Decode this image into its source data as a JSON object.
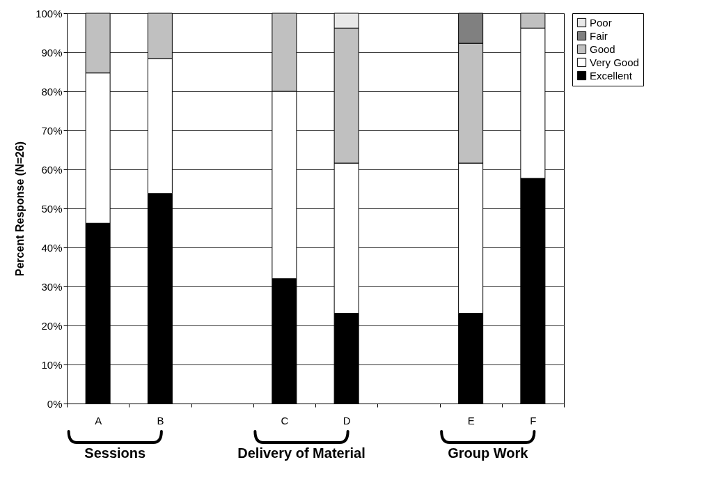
{
  "chart_data": {
    "type": "bar",
    "stacked": true,
    "ylabel": "Percent Response (N=26)",
    "categories": [
      "A",
      "B",
      null,
      "C",
      "D",
      null,
      "E",
      "F"
    ],
    "series": [
      {
        "name": "Excellent",
        "color": "#000000",
        "values": [
          46.2,
          53.8,
          null,
          32,
          23.1,
          null,
          23.1,
          57.7
        ]
      },
      {
        "name": "Very Good",
        "color": "#ffffff",
        "values": [
          38.5,
          34.6,
          null,
          48,
          38.5,
          null,
          38.5,
          38.5
        ]
      },
      {
        "name": "Good",
        "color": "#c0c0c0",
        "values": [
          15.3,
          11.6,
          null,
          20,
          34.6,
          null,
          30.7,
          3.8
        ]
      },
      {
        "name": "Fair",
        "color": "#808080",
        "values": [
          null,
          null,
          null,
          null,
          null,
          null,
          7.7,
          null
        ]
      },
      {
        "name": "Poor",
        "color": "#e8e8e8",
        "values": [
          null,
          null,
          null,
          null,
          3.8,
          null,
          null,
          null
        ]
      }
    ],
    "ylim": [
      0,
      100
    ],
    "yticks": [
      {
        "value": 0,
        "label": "0%"
      },
      {
        "value": 10,
        "label": "10%"
      },
      {
        "value": 20,
        "label": "20%"
      },
      {
        "value": 30,
        "label": "30%"
      },
      {
        "value": 40,
        "label": "40%"
      },
      {
        "value": 50,
        "label": "50%"
      },
      {
        "value": 60,
        "label": "60%"
      },
      {
        "value": 70,
        "label": "70%"
      },
      {
        "value": 80,
        "label": "80%"
      },
      {
        "value": 90,
        "label": "90%"
      },
      {
        "value": 100,
        "label": "100%"
      }
    ],
    "grid": "y",
    "legend": "right",
    "annotations": [
      "Sessions",
      "Delivery of Material",
      "Group Work"
    ]
  }
}
